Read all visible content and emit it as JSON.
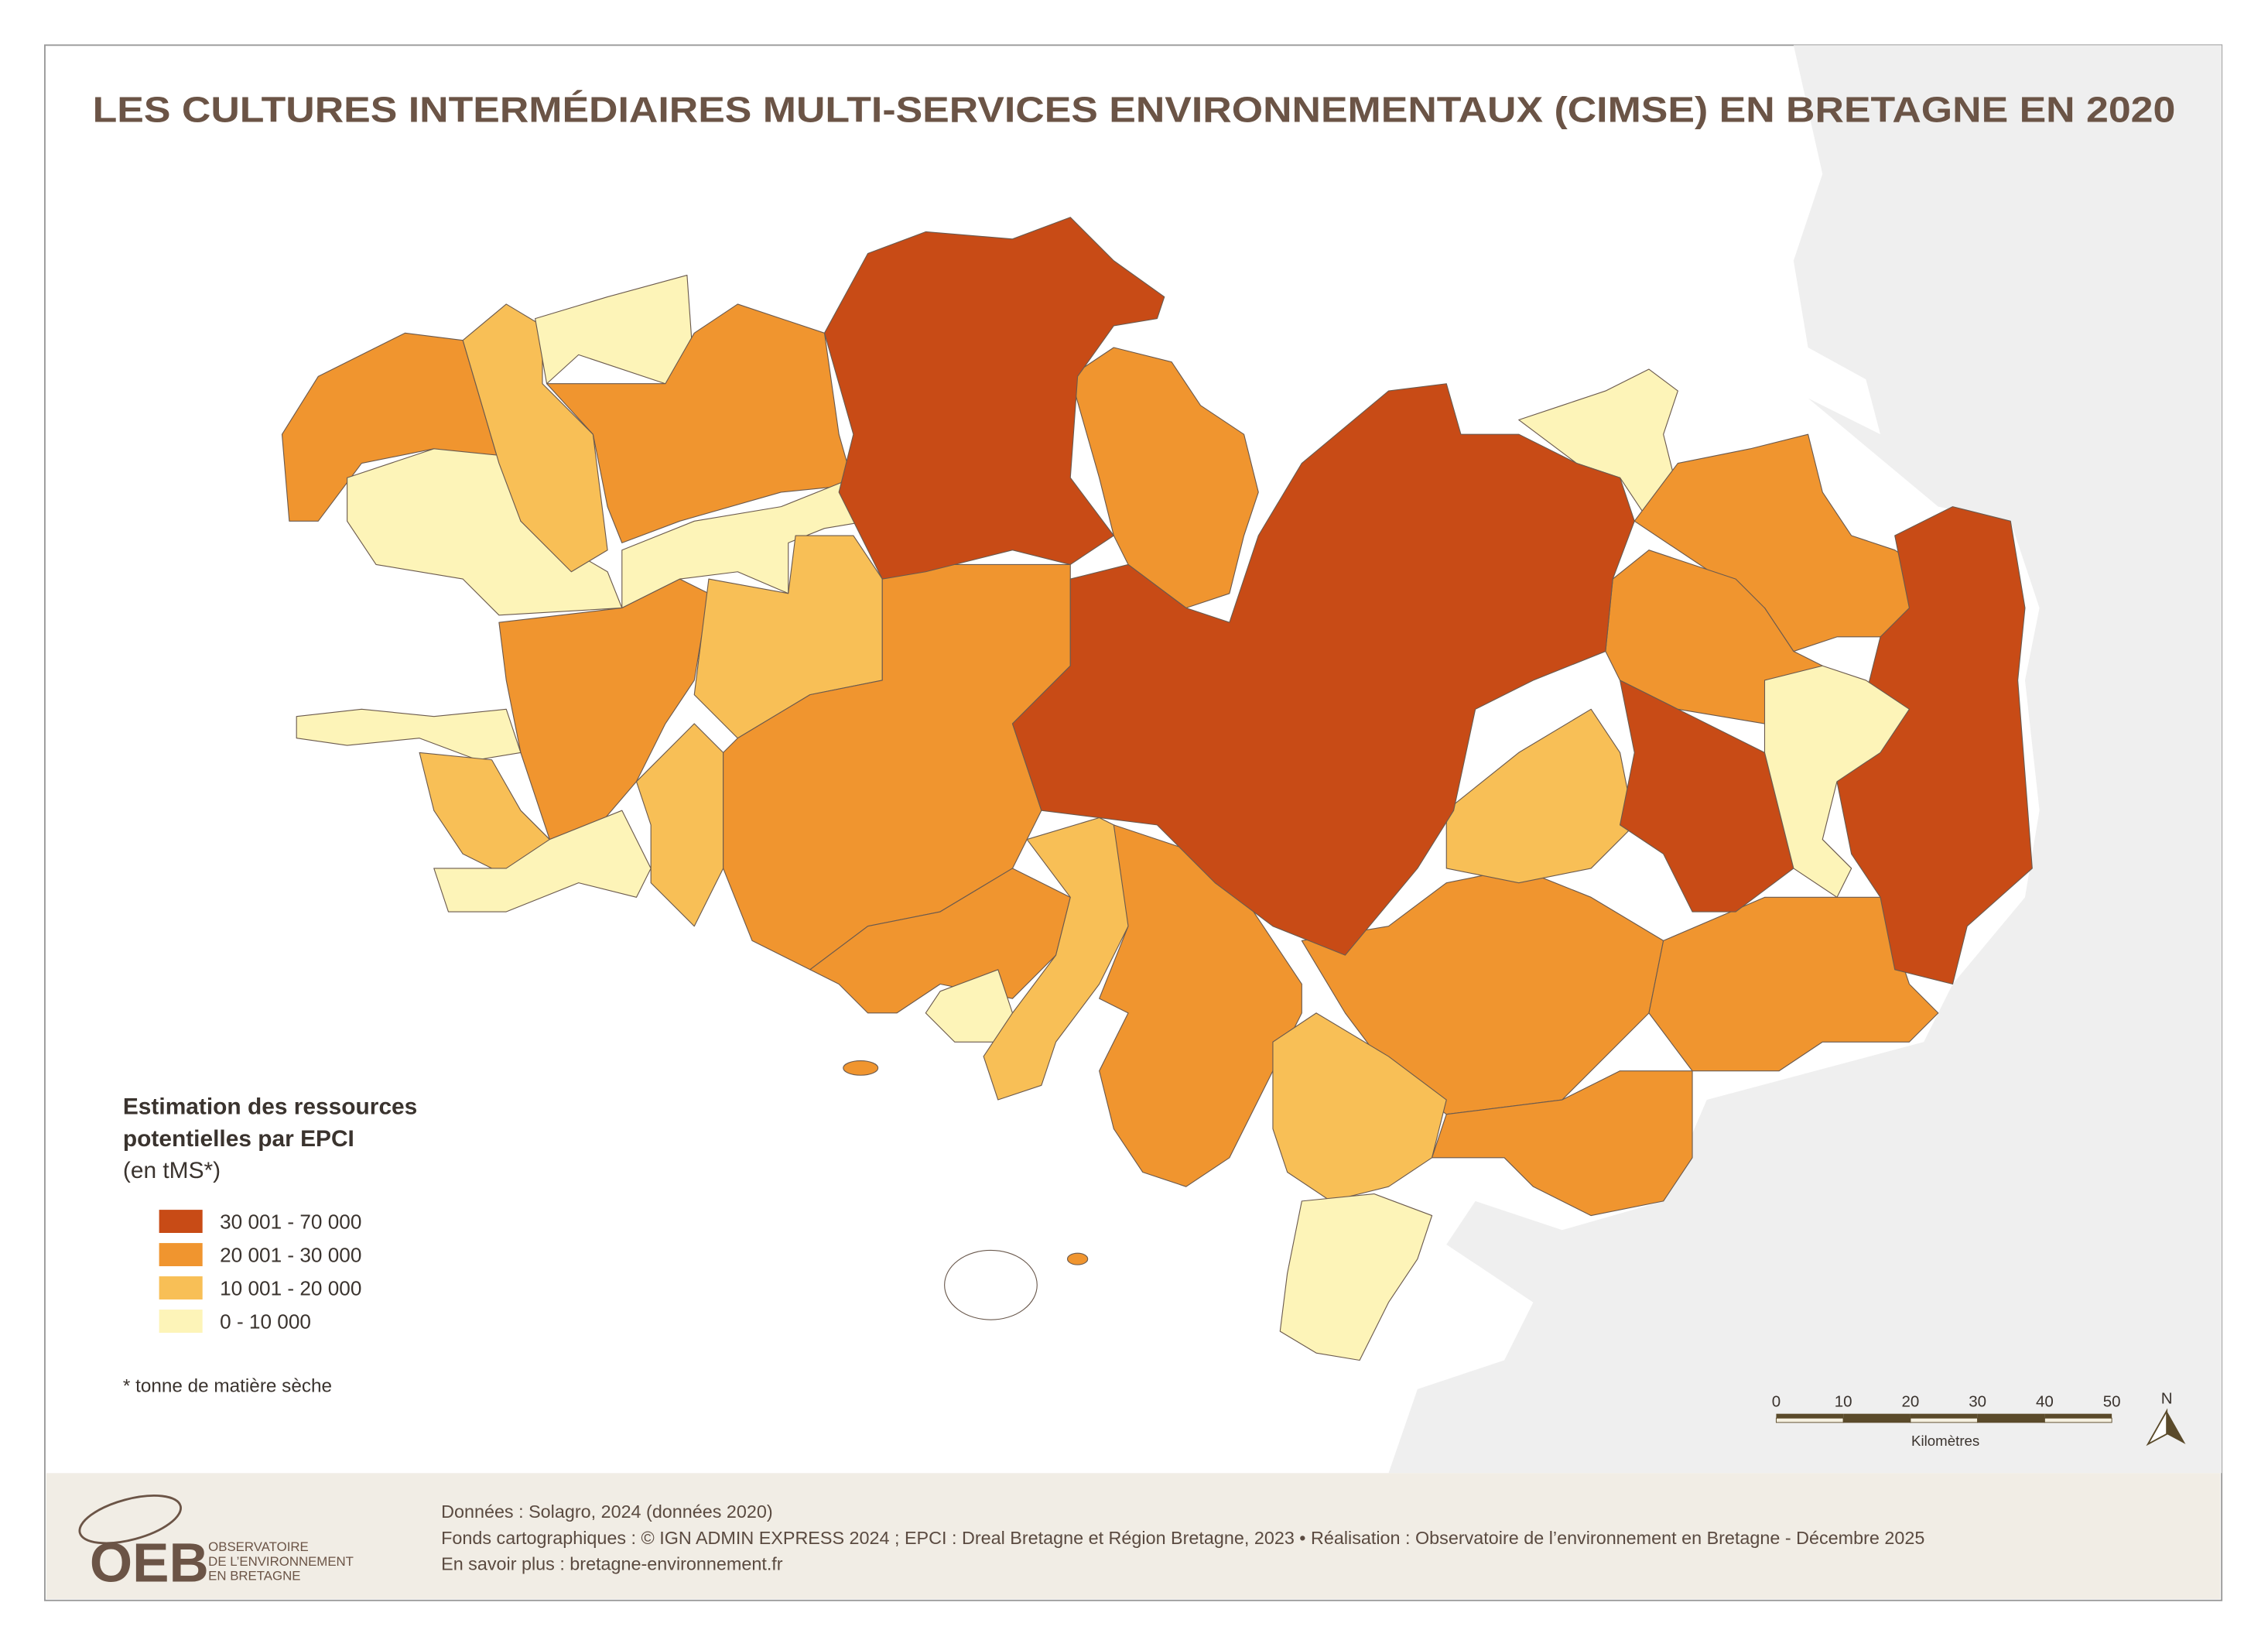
{
  "title": "LES CULTURES INTERMÉDIAIRES MULTI-SERVICES ENVIRONNEMENTAUX (CIMSE) EN BRETAGNE EN 2020",
  "legend": {
    "title": [
      "Estimation des ressources",
      "potentielles par EPCI",
      "(en tMS*)"
    ],
    "classes": [
      {
        "label": "30 001 - 70 000",
        "color": "#c84b16"
      },
      {
        "label": "20 001 - 30 000",
        "color": "#f0952f"
      },
      {
        "label": "10 001 - 20 000",
        "color": "#f8bf56"
      },
      {
        "label": "0 - 10 000",
        "color": "#fdf4b8"
      }
    ],
    "footnote": "* tonne de matière sèche"
  },
  "scale": {
    "ticks": [
      0,
      10,
      20,
      30,
      40,
      50
    ],
    "unit": "Kilomètres"
  },
  "north": "N",
  "footer": {
    "logo": "OEB",
    "org": [
      "OBSERVATOIRE",
      "DE L’ENVIRONNEMENT",
      "EN BRETAGNE"
    ],
    "credits": [
      "Données : Solagro, 2024 (données 2020)",
      "Fonds cartographiques : © IGN ADMIN EXPRESS 2024 ; EPCI : Dreal Bretagne et Région Bretagne, 2023 • Réalisation : Observatoire de l’environnement en Bretagne - Décembre 2025",
      "En savoir plus : bretagne-environnement.fr"
    ]
  }
}
